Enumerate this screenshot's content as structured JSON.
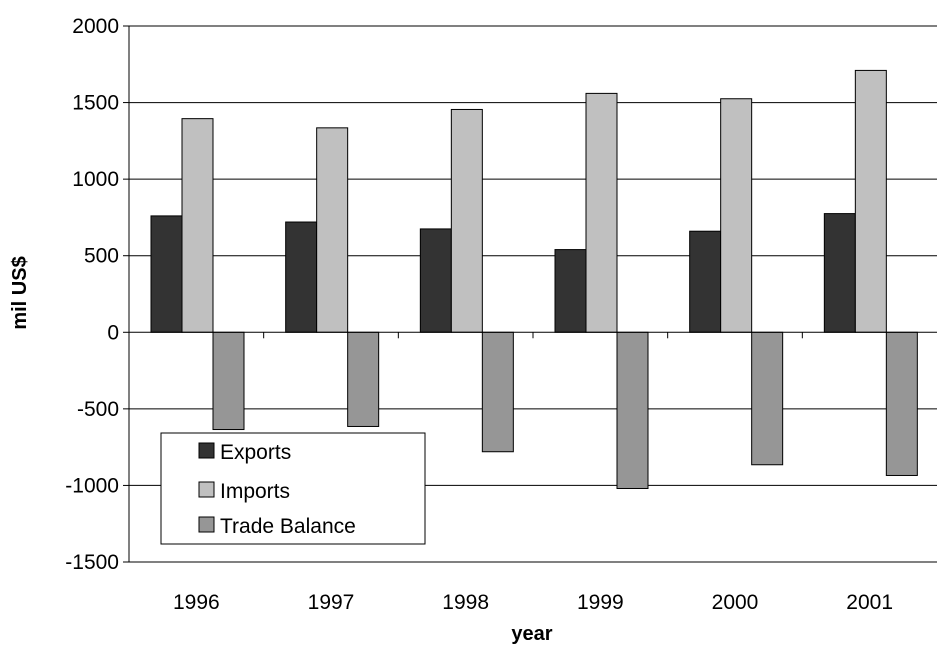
{
  "chart_data": {
    "type": "bar",
    "title": "",
    "xlabel": "year",
    "ylabel": "mil US$",
    "ylim": [
      -1500,
      2000
    ],
    "yticks": [
      2000,
      1500,
      1000,
      500,
      0,
      -500,
      -1000,
      -1500
    ],
    "categories": [
      "1996",
      "1997",
      "1998",
      "1999",
      "2000",
      "2001"
    ],
    "grid": "horizontal",
    "legend_position": "bottom-left",
    "series": [
      {
        "name": "Exports",
        "color": "#333333",
        "values": [
          760,
          720,
          675,
          540,
          660,
          775
        ]
      },
      {
        "name": "Imports",
        "color": "#c0c0c0",
        "values": [
          1395,
          1335,
          1455,
          1560,
          1525,
          1710
        ]
      },
      {
        "name": "Trade Balance",
        "color": "#969696",
        "values": [
          -635,
          -615,
          -780,
          -1020,
          -865,
          -935
        ]
      }
    ]
  }
}
